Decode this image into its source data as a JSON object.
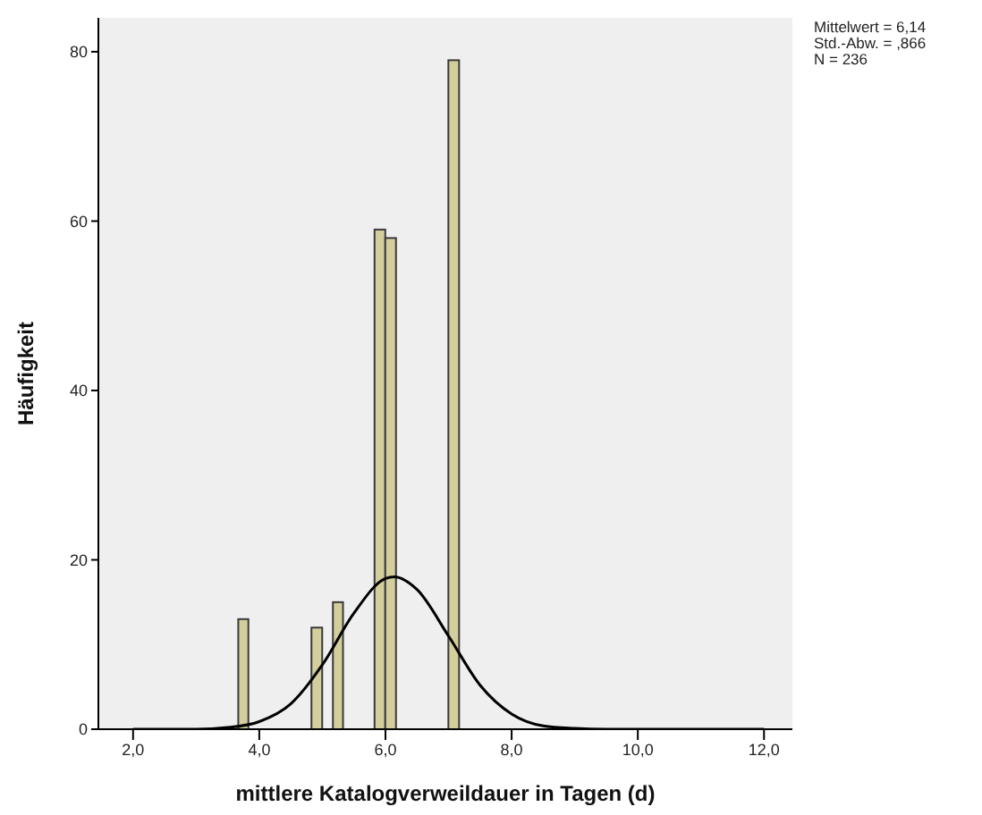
{
  "chart_data": {
    "type": "histogram",
    "xlabel": "mittlere Katalogverweildauer in Tagen (d)",
    "ylabel": "Häufigkeit",
    "bins": [
      3.67,
      3.83,
      4.83,
      5.0,
      5.17,
      5.33,
      5.83,
      6.0,
      6.17,
      7.0,
      7.17
    ],
    "values": [
      13,
      0,
      12,
      0,
      15,
      0,
      59,
      58,
      0,
      79
    ],
    "color": "#d3ce9b",
    "series": [
      {
        "type": "line",
        "color": "#000000",
        "x": [
          2,
          3,
          3.5,
          4,
          4.5,
          5,
          5.5,
          6,
          6.14,
          6.5,
          7,
          7.5,
          8,
          8.5,
          9,
          9.5,
          10,
          11,
          12
        ],
        "values": [
          0,
          0,
          0.2,
          0.9,
          3,
          7.6,
          13.7,
          17.8,
          18,
          16.5,
          11,
          5.2,
          1.8,
          0.4,
          0.1,
          0,
          0,
          0,
          0
        ]
      }
    ],
    "xlim": [
      1.45,
      12.45
    ],
    "xticks": [
      {
        "value": 2,
        "label": "2,0"
      },
      {
        "value": 4,
        "label": "4,0"
      },
      {
        "value": 6,
        "label": "6,0"
      },
      {
        "value": 8,
        "label": "8,0"
      },
      {
        "value": 10,
        "label": "10,0"
      },
      {
        "value": 12,
        "label": "12,0"
      }
    ],
    "ylim": [
      0,
      84
    ],
    "yticks": [
      0,
      20,
      40,
      60,
      80
    ],
    "grid": false,
    "annotations": [
      "Mittelwert = 6,14",
      "Std.-Abw. = ,866",
      "N = 236"
    ]
  }
}
